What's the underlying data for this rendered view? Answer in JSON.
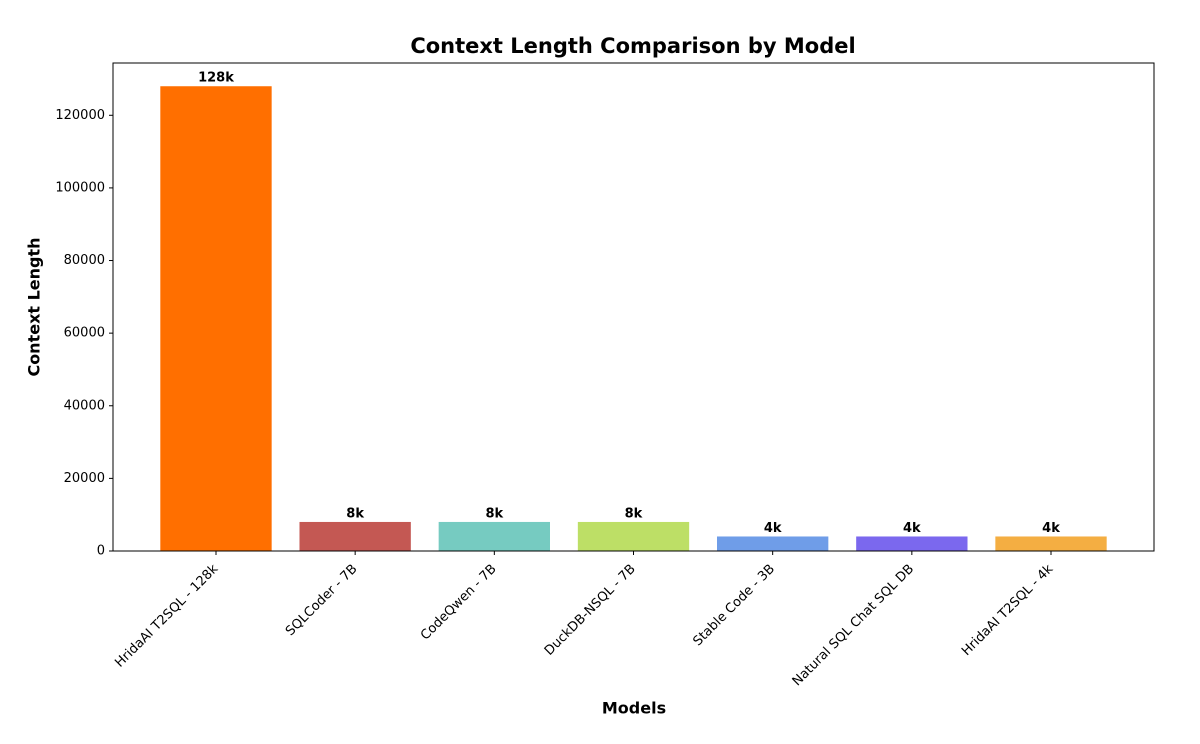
{
  "chart_data": {
    "type": "bar",
    "title": "Context Length Comparison by Model",
    "x_label": "Models",
    "y_label": "Context Length",
    "categories": [
      "HridaAI T2SQL - 128k",
      "SQLCoder - 7B",
      "CodeQwen - 7B",
      "DuckDB-NSQL - 7B",
      "Stable Code - 3B",
      "Natural SQL Chat SQL DB",
      "HridaAI T2SQL - 4k"
    ],
    "values": [
      128000,
      8000,
      8000,
      8000,
      4000,
      4000,
      4000
    ],
    "value_labels": [
      "128k",
      "8k",
      "8k",
      "8k",
      "4k",
      "4k",
      "4k"
    ],
    "colors": [
      "#ff6f00",
      "#c45853",
      "#76cbc1",
      "#bddf66",
      "#6f9de8",
      "#7b68ee",
      "#f4ae42"
    ],
    "ylim": [
      0,
      134400
    ],
    "yticks": [
      0,
      20000,
      40000,
      60000,
      80000,
      100000,
      120000
    ],
    "grid": false
  }
}
